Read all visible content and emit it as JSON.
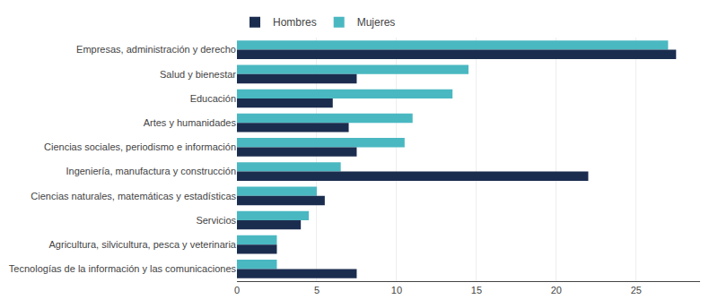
{
  "chart_data": {
    "type": "bar",
    "orientation": "horizontal",
    "categories": [
      "Empresas, administración y derecho",
      "Salud y bienestar",
      "Educación",
      "Artes y humanidades",
      "Ciencias sociales, periodismo e información",
      "Ingeniería, manufactura y construcción",
      "Ciencias naturales, matemáticas y estadísticas",
      "Servicios",
      "Agricultura, silvicultura, pesca y veterinaria",
      "Tecnologías de la información y las comunicaciones"
    ],
    "series": [
      {
        "name": "Hombres",
        "color": "#1b2d4f",
        "values": [
          27.5,
          7.5,
          6.0,
          7.0,
          7.5,
          22.0,
          5.5,
          4.0,
          2.5,
          7.5
        ]
      },
      {
        "name": "Mujeres",
        "color": "#4ab8c1",
        "values": [
          27.0,
          14.5,
          13.5,
          11.0,
          10.5,
          6.5,
          5.0,
          4.5,
          2.5,
          2.5
        ]
      }
    ],
    "xlim": [
      0,
      29
    ],
    "xticks": [
      0,
      5,
      10,
      15,
      20,
      25
    ],
    "grid": true,
    "legend": "upper left"
  }
}
